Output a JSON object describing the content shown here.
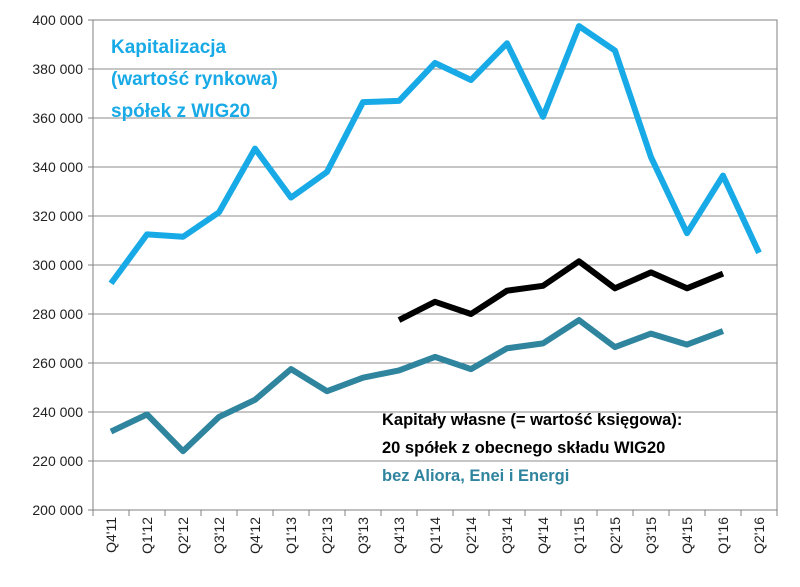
{
  "chart_data": {
    "type": "line",
    "categories": [
      "Q4'11",
      "Q1'12",
      "Q2'12",
      "Q3'12",
      "Q4'12",
      "Q1'13",
      "Q2'13",
      "Q3'13",
      "Q4'13",
      "Q1'14",
      "Q2'14",
      "Q3'14",
      "Q4'14",
      "Q1'15",
      "Q2'15",
      "Q3'15",
      "Q4'15",
      "Q1'16",
      "Q2'16"
    ],
    "ylim": [
      200000,
      400000
    ],
    "yticks": [
      "200 000",
      "220 000",
      "240 000",
      "260 000",
      "280 000",
      "300 000",
      "320 000",
      "340 000",
      "360 000",
      "380 000",
      "400 000"
    ],
    "grid": true,
    "legend": "none",
    "series": [
      {
        "color": "#18aae6",
        "values": [
          292500,
          312500,
          311500,
          321500,
          347500,
          327500,
          338000,
          366500,
          367000,
          382500,
          375500,
          390500,
          360500,
          397500,
          387500,
          344000,
          313000,
          336500,
          305000
        ]
      },
      {
        "color": "#000000",
        "values": [
          null,
          null,
          null,
          null,
          null,
          null,
          null,
          null,
          277500,
          285000,
          280000,
          289500,
          291500,
          301500,
          290500,
          297000,
          290500,
          296500,
          null
        ]
      },
      {
        "color": "#2f849e",
        "values": [
          232000,
          239000,
          224000,
          238000,
          245000,
          257500,
          248500,
          254000,
          257000,
          262500,
          257500,
          266000,
          268000,
          277500,
          266500,
          272000,
          267500,
          273000,
          null
        ]
      }
    ],
    "annotations": {
      "blue": [
        "Kapitalizacja",
        "(wartość rynkowa)",
        "spółek z WIG20"
      ],
      "black": [
        "Kapitały własne (= wartość księgowa):",
        "20 spółek z obecnego składu WIG20"
      ],
      "teal": [
        "bez Aliora, Enei i Energi"
      ]
    }
  }
}
